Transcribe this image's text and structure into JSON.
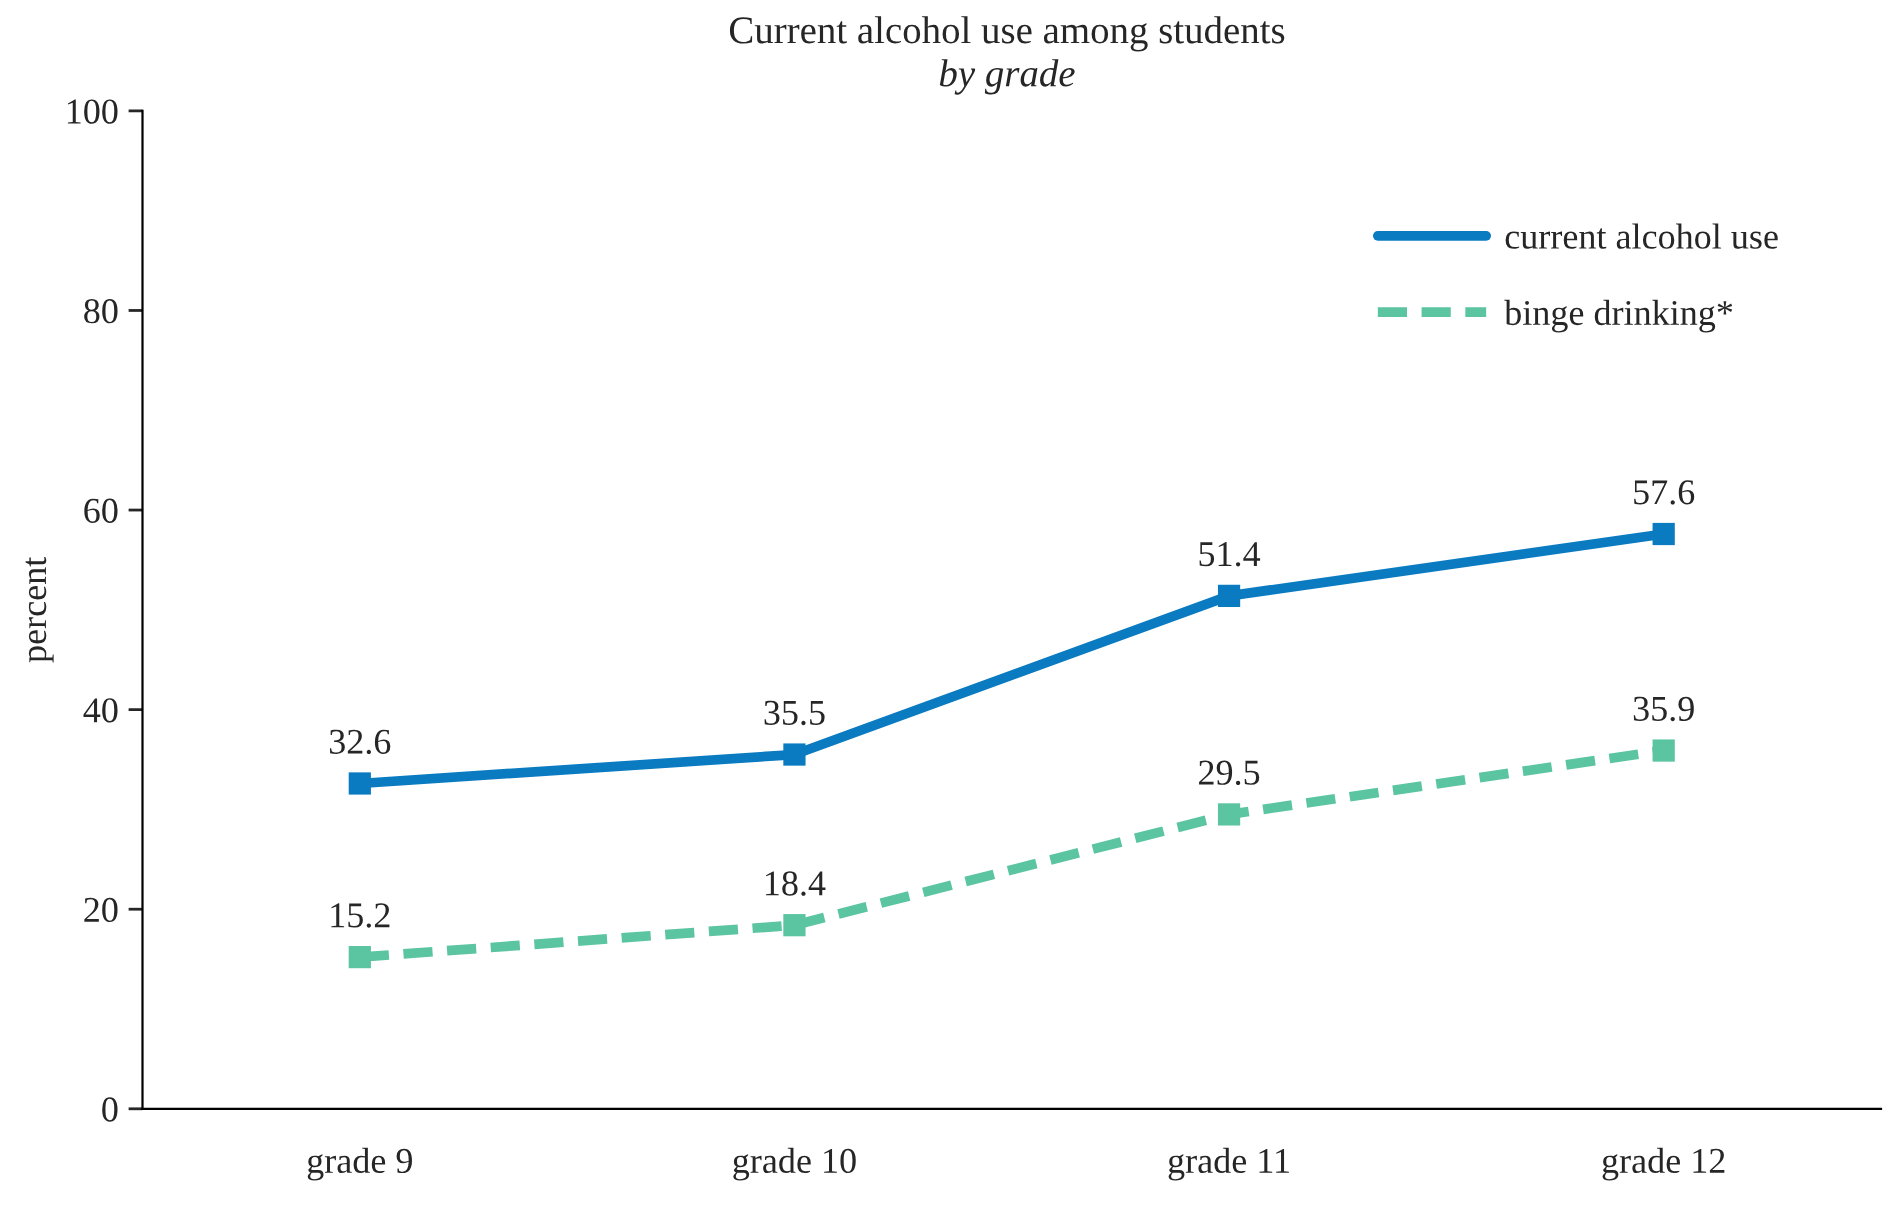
{
  "chart_data": {
    "type": "line",
    "title": "Current alcohol use among students",
    "subtitle": "by grade",
    "ylabel": "percent",
    "categories": [
      "grade 9",
      "grade 10",
      "grade 11",
      "grade 12"
    ],
    "series": [
      {
        "name": "current alcohol use",
        "color": "#0a7bc1",
        "values": [
          32.6,
          35.5,
          51.4,
          57.6
        ],
        "line_style": "solid"
      },
      {
        "name": "binge drinking*",
        "color": "#5bc4a0",
        "values": [
          15.2,
          18.4,
          29.5,
          35.9
        ],
        "line_style": "dashed"
      }
    ],
    "ylim": [
      0,
      100
    ],
    "yticks": [
      0,
      20,
      40,
      60,
      80,
      100
    ],
    "grid": false,
    "legend": "top right",
    "marker": "square",
    "data_labels": true
  }
}
